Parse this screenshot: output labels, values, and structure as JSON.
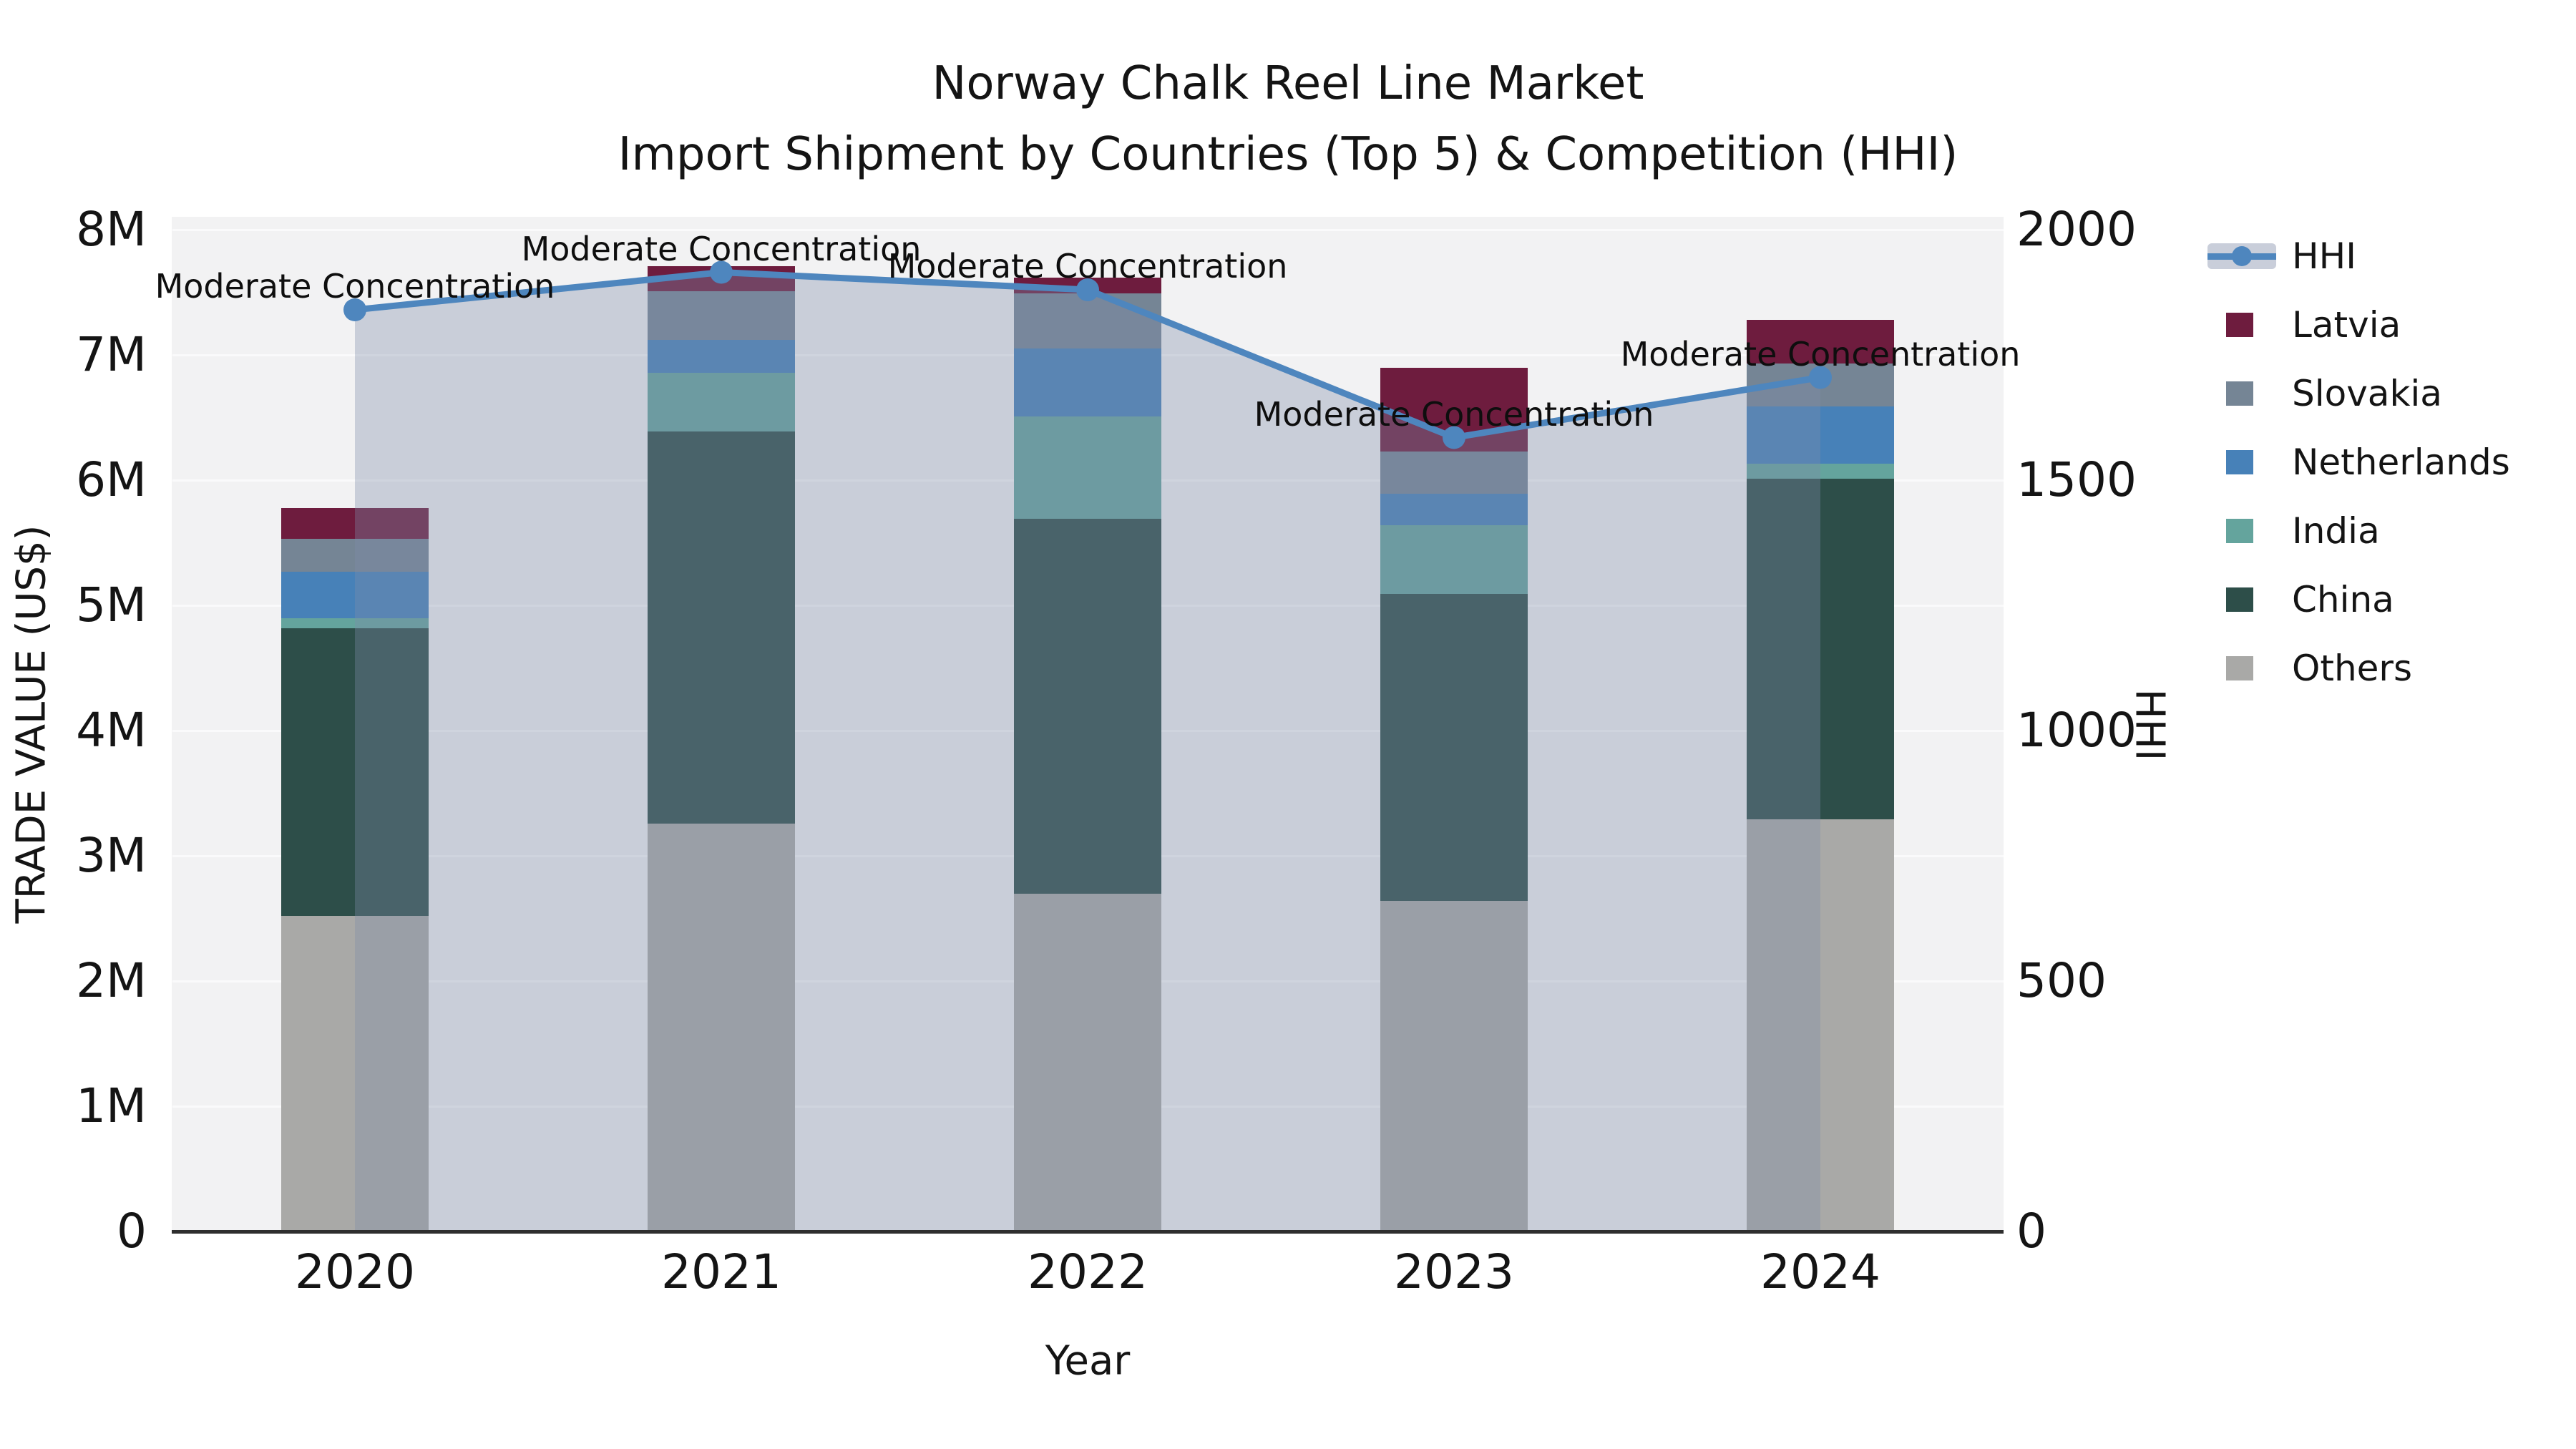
{
  "chart_data": {
    "type": "bar+line",
    "title_line1": "Norway Chalk Reel Line Market",
    "title_line2": "Import Shipment by Countries (Top 5) & Competition (HHI)",
    "xlabel": "Year",
    "ylabel_left": "TRADE VALUE (US$)",
    "ylabel_right": "HHI",
    "categories": [
      "2020",
      "2021",
      "2022",
      "2023",
      "2024"
    ],
    "y_left_ticks": [
      "0",
      "1M",
      "2M",
      "3M",
      "4M",
      "5M",
      "6M",
      "7M",
      "8M"
    ],
    "y_left_tick_values_M": [
      0,
      1,
      2,
      3,
      4,
      5,
      6,
      7,
      8
    ],
    "y_right_ticks": [
      "0",
      "500",
      "1000",
      "1500",
      "2000"
    ],
    "y_right_tick_values": [
      0,
      500,
      1000,
      1500,
      2000
    ],
    "ylim_left_M": [
      0,
      8.1
    ],
    "ylim_right": [
      0,
      2000
    ],
    "grid": "horizontal",
    "legend_position": "right-outside",
    "stack_order_bottom_to_top": [
      "Others",
      "China",
      "India",
      "Netherlands",
      "Slovakia",
      "Latvia"
    ],
    "series": [
      {
        "name": "Others",
        "values_M": [
          2.52,
          3.26,
          2.7,
          2.64,
          3.29
        ]
      },
      {
        "name": "China",
        "values_M": [
          2.3,
          3.13,
          2.99,
          2.45,
          2.72
        ]
      },
      {
        "name": "India",
        "values_M": [
          0.08,
          0.47,
          0.82,
          0.55,
          0.12
        ]
      },
      {
        "name": "Netherlands",
        "values_M": [
          0.37,
          0.26,
          0.54,
          0.25,
          0.46
        ]
      },
      {
        "name": "Slovakia",
        "values_M": [
          0.26,
          0.39,
          0.44,
          0.34,
          0.34
        ]
      },
      {
        "name": "Latvia",
        "values_M": [
          0.25,
          0.2,
          0.13,
          0.67,
          0.35
        ]
      }
    ],
    "stack_totals_M": [
      5.78,
      7.71,
      7.62,
      6.9,
      7.28
    ],
    "hhi": {
      "name": "HHI",
      "values": [
        1840,
        1915,
        1880,
        1585,
        1705
      ],
      "point_annotations": [
        "Moderate Concentration",
        "Moderate Concentration",
        "Moderate Concentration",
        "Moderate Concentration",
        "Moderate Concentration"
      ]
    },
    "legend": [
      "HHI",
      "Latvia",
      "Slovakia",
      "Netherlands",
      "India",
      "China",
      "Others"
    ],
    "colors": {
      "Latvia": "#6e1c3e",
      "Slovakia": "#758595",
      "Netherlands": "#4781b8",
      "India": "#64a49d",
      "China": "#2d4e49",
      "Others": "#a9a9a7",
      "hhi_line": "#4e86be",
      "hhi_area": "rgba(126,140,169,0.35)",
      "panel": "#f2f2f3",
      "gridline": "#fafafb",
      "axis_line": "#2e2e2e",
      "text": "#141414"
    }
  }
}
